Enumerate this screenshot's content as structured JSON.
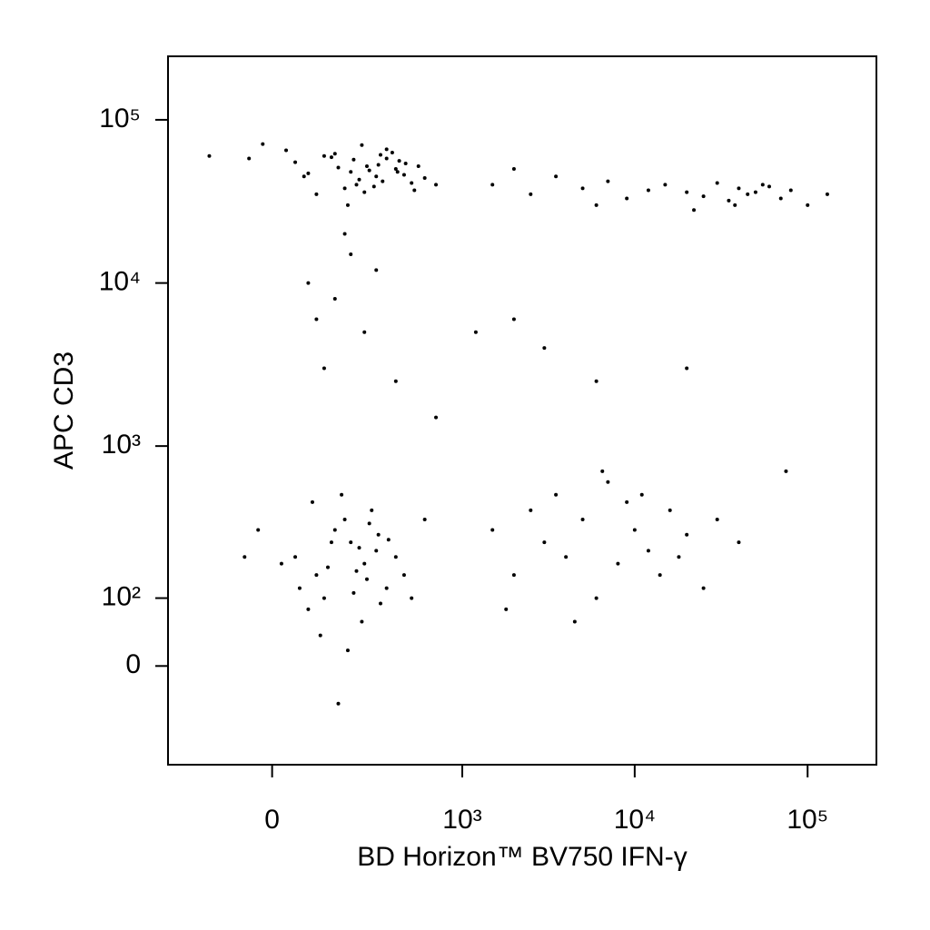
{
  "chart_data": {
    "type": "scatter",
    "x_label": "BD Horizon™ BV750 IFN-γ",
    "y_label": "APC CD3",
    "xscale": "biexponential",
    "yscale": "biexponential",
    "color": "#000000",
    "xlim": [
      -300,
      250000
    ],
    "ylim": [
      -170,
      245000
    ],
    "xticks": [
      0,
      {
        "value": 1000,
        "label": "10³"
      },
      {
        "value": 10000,
        "label": "10⁴"
      },
      {
        "value": 100000,
        "label": "10⁵"
      }
    ],
    "yticks": [
      0,
      {
        "value": 100,
        "label": "10²"
      },
      {
        "value": 1000,
        "label": "10³"
      },
      {
        "value": 10000,
        "label": "10⁴"
      },
      {
        "value": 100000,
        "label": "10⁵"
      }
    ],
    "x": [
      50,
      120,
      200,
      260,
      300,
      350,
      400,
      150,
      80,
      220,
      310,
      450,
      500,
      30,
      -50,
      -150,
      180,
      240,
      330,
      420,
      600,
      100,
      270,
      380,
      160,
      210,
      290,
      350,
      460,
      520,
      -20,
      70,
      140,
      230,
      320,
      410,
      550,
      700,
      250,
      190,
      1500,
      2500,
      3500,
      5000,
      7000,
      9000,
      12000,
      15000,
      20000,
      25000,
      30000,
      35000,
      40000,
      45000,
      50000,
      60000,
      70000,
      80000,
      100000,
      130000,
      22000,
      38000,
      55000,
      2000,
      6000,
      50,
      100,
      150,
      200,
      250,
      300,
      350,
      120,
      180,
      220,
      280,
      80,
      140,
      260,
      320,
      400,
      -30,
      20,
      60,
      170,
      240,
      310,
      450,
      500,
      110,
      190,
      230,
      270,
      130,
      210,
      90,
      360,
      160,
      -60,
      600,
      1500,
      2000,
      2500,
      3000,
      3500,
      4000,
      5000,
      6000,
      7000,
      8000,
      9000,
      10000,
      12000,
      14000,
      16000,
      20000,
      25000,
      30000,
      40000,
      1800,
      4500,
      11000,
      18000,
      6500,
      75000,
      80,
      150,
      200,
      250,
      120,
      300,
      180,
      100,
      1200,
      2000,
      3000,
      6000,
      20000,
      400,
      700
    ],
    "y": [
      55000,
      60000,
      48000,
      52000,
      45000,
      58000,
      50000,
      62000,
      47000,
      40000,
      53000,
      46000,
      41000,
      65000,
      58000,
      60000,
      38000,
      70000,
      42000,
      56000,
      44000,
      35000,
      49000,
      63000,
      51000,
      57000,
      39000,
      66000,
      54000,
      37000,
      71000,
      45000,
      59000,
      43000,
      61000,
      48000,
      52000,
      40000,
      36000,
      30000,
      40000,
      35000,
      45000,
      38000,
      42000,
      33000,
      37000,
      40000,
      36000,
      34000,
      41000,
      32000,
      38000,
      35000,
      36000,
      39000,
      33000,
      37000,
      30000,
      35000,
      28000,
      30000,
      40000,
      50000,
      30000,
      200,
      150,
      300,
      250,
      180,
      220,
      120,
      100,
      350,
      160,
      400,
      80,
      250,
      140,
      90,
      200,
      300,
      180,
      120,
      500,
      60,
      280,
      150,
      100,
      40,
      20,
      230,
      330,
      170,
      110,
      450,
      260,
      -50,
      200,
      350,
      300,
      150,
      400,
      250,
      500,
      200,
      350,
      100,
      600,
      180,
      450,
      300,
      220,
      150,
      400,
      280,
      120,
      350,
      250,
      80,
      60,
      500,
      200,
      700,
      700,
      10000,
      8000,
      15000,
      5000,
      3000,
      12000,
      20000,
      6000,
      5000,
      6000,
      4000,
      2500,
      3000,
      2500,
      1500
    ]
  }
}
